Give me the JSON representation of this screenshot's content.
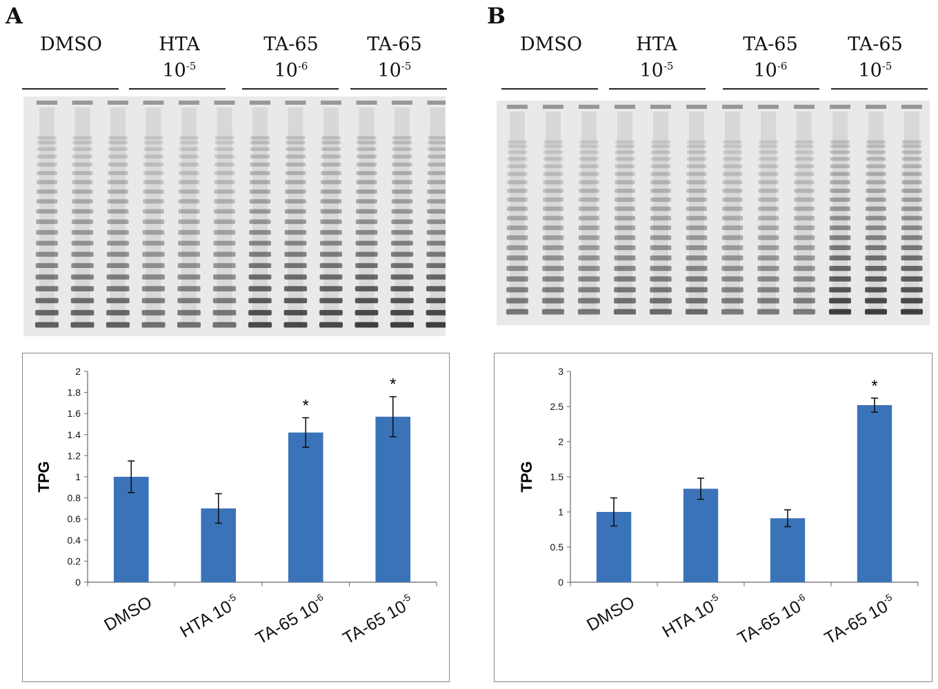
{
  "panels": [
    {
      "letter": "A",
      "lanes": [
        {
          "name": "DMSO",
          "exp": ""
        },
        {
          "name": "HTA",
          "exp": "10",
          "sup": "-5"
        },
        {
          "name": "TA-65",
          "exp": "10",
          "sup": "-6"
        },
        {
          "name": "TA-65",
          "exp": "10",
          "sup": "-5"
        }
      ]
    },
    {
      "letter": "B",
      "lanes": [
        {
          "name": "DMSO",
          "exp": ""
        },
        {
          "name": "HTA",
          "exp": "10",
          "sup": "-5"
        },
        {
          "name": "TA-65",
          "exp": "10",
          "sup": "-6"
        },
        {
          "name": "TA-65",
          "exp": "10",
          "sup": "-5"
        }
      ]
    }
  ],
  "chart_data": [
    {
      "type": "bar",
      "ylabel": "TPG",
      "xlabel": "",
      "title": "",
      "categories": [
        {
          "base": "DMSO",
          "sup": ""
        },
        {
          "base": "HTA 10",
          "sup": "-5"
        },
        {
          "base": "TA-65 10",
          "sup": "-6"
        },
        {
          "base": "TA-65 10",
          "sup": "-5"
        }
      ],
      "values": [
        1.0,
        0.7,
        1.42,
        1.57
      ],
      "errors": [
        0.15,
        0.14,
        0.14,
        0.19
      ],
      "significance": [
        "",
        "",
        "*",
        "*"
      ],
      "ylim": [
        0,
        2
      ],
      "yticks": [
        "0",
        "0.2",
        "0.4",
        "0.6",
        "0.8",
        "1",
        "1.2",
        "1.4",
        "1.6",
        "1.8",
        "2"
      ],
      "bar_color": "#3b73b9",
      "grid": false
    },
    {
      "type": "bar",
      "ylabel": "TPG",
      "xlabel": "",
      "title": "",
      "categories": [
        {
          "base": "DMSO",
          "sup": ""
        },
        {
          "base": "HTA 10",
          "sup": "-5"
        },
        {
          "base": "TA-65 10",
          "sup": "-6"
        },
        {
          "base": "TA-65 10",
          "sup": "-5"
        }
      ],
      "values": [
        1.0,
        1.33,
        0.91,
        2.52
      ],
      "errors": [
        0.2,
        0.15,
        0.12,
        0.1
      ],
      "significance": [
        "",
        "",
        "",
        "*"
      ],
      "ylim": [
        0,
        3
      ],
      "yticks": [
        "0",
        "0.5",
        "1",
        "1.5",
        "2",
        "2.5",
        "3"
      ],
      "bar_color": "#3b73b9",
      "grid": false
    }
  ]
}
